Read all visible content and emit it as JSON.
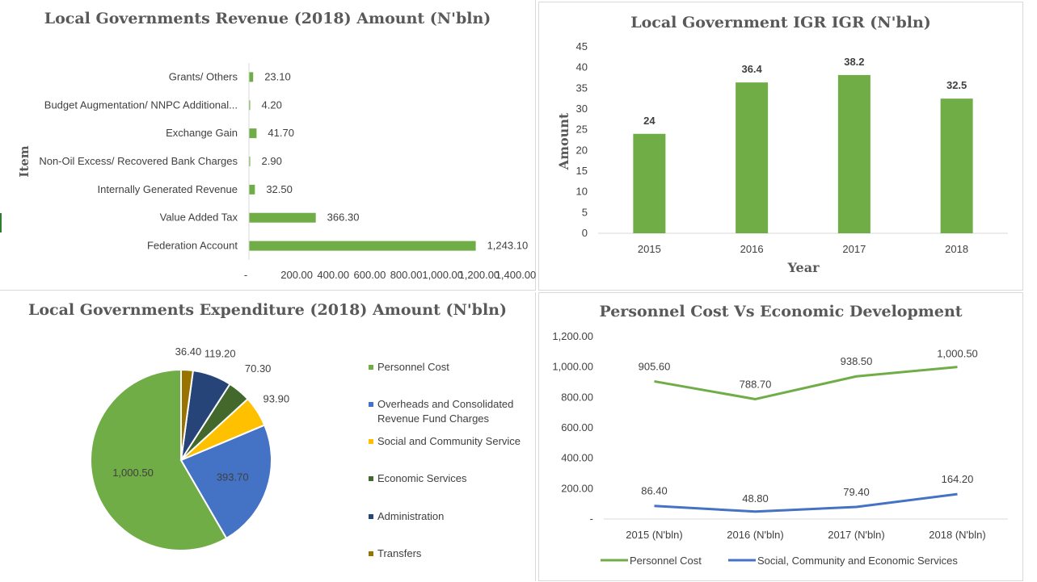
{
  "colors": {
    "green": "#70ad47",
    "blue": "#4472c4",
    "yellow": "#ffc000",
    "dark_green": "#43682b",
    "navy": "#264478",
    "olive": "#997300"
  },
  "chart_data": [
    {
      "id": "revenue",
      "type": "bar",
      "orientation": "horizontal",
      "title": "Local Governments Revenue (2018) Amount (N'bln)",
      "ylabel": "Item",
      "categories": [
        "Grants/ Others",
        "Budget Augmentation/ NNPC Additional...",
        "Exchange Gain",
        "Non-Oil Excess/ Recovered Bank Charges",
        "Internally Generated Revenue",
        "Value Added Tax",
        "Federation Account"
      ],
      "values": [
        23.1,
        4.2,
        41.7,
        2.9,
        32.5,
        366.3,
        1243.1
      ],
      "value_labels": [
        "23.10",
        "4.20",
        "41.70",
        "2.90",
        "32.50",
        "366.30",
        "1,243.10"
      ],
      "x_ticks": [
        "-",
        "200.00",
        "400.00",
        "600.00",
        "800.00",
        "1,000.00",
        "1,200.00",
        "1,400.00"
      ],
      "xlim": [
        0,
        1400
      ]
    },
    {
      "id": "igr",
      "type": "bar",
      "title": "Local Government IGR IGR (N'bln)",
      "xlabel": "Year",
      "ylabel": "Amount",
      "categories": [
        "2015",
        "2016",
        "2017",
        "2018"
      ],
      "values": [
        24,
        36.4,
        38.2,
        32.5
      ],
      "value_labels": [
        "24",
        "36.4",
        "38.2",
        "32.5"
      ],
      "y_ticks": [
        "0",
        "5",
        "10",
        "15",
        "20",
        "25",
        "30",
        "35",
        "40",
        "45"
      ],
      "ylim": [
        0,
        45
      ]
    },
    {
      "id": "expenditure",
      "type": "pie",
      "title": "Local Governments Expenditure (2018) Amount (N'bln)",
      "categories": [
        "Personnel Cost",
        "Overheads and Consolidated Revenue Fund Charges",
        "Social and Community Service",
        "Economic Services",
        "Administration",
        "Transfers"
      ],
      "values": [
        1000.5,
        393.7,
        93.9,
        70.3,
        119.2,
        36.4
      ],
      "value_labels": [
        "1,000.50",
        "393.70",
        "93.90",
        "70.30",
        "119.20",
        "36.40"
      ],
      "legend_position": "right"
    },
    {
      "id": "personnel",
      "type": "line",
      "title": "Personnel Cost Vs Economic Development",
      "categories": [
        "2015 (N'bln)",
        "2016 (N'bln)",
        "2017 (N'bln)",
        "2018 (N'bln)"
      ],
      "series": [
        {
          "name": "Personnel Cost",
          "values": [
            905.6,
            788.7,
            938.5,
            1000.5
          ],
          "value_labels": [
            "905.60",
            "788.70",
            "938.50",
            "1,000.50"
          ]
        },
        {
          "name": "Social, Community and Economic Services",
          "values": [
            86.4,
            48.8,
            79.4,
            164.2
          ],
          "value_labels": [
            "86.40",
            "48.80",
            "79.40",
            "164.20"
          ]
        }
      ],
      "y_ticks": [
        "-",
        "200.00",
        "400.00",
        "600.00",
        "800.00",
        "1,000.00",
        "1,200.00"
      ],
      "ylim": [
        0,
        1200
      ],
      "legend_position": "bottom"
    }
  ]
}
